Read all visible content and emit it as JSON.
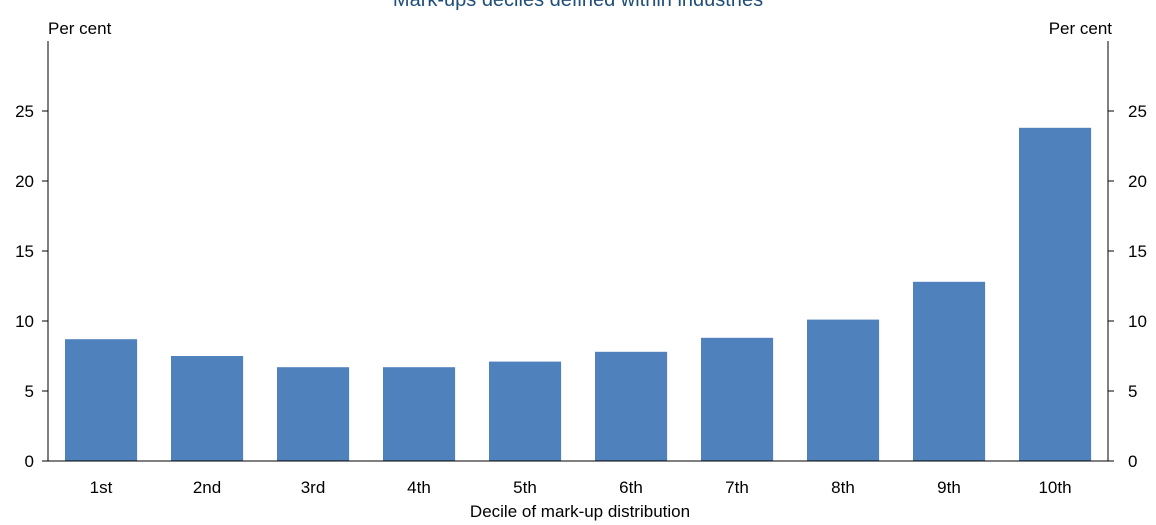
{
  "chart_data": {
    "type": "bar",
    "title": "Mark-ups deciles defined within industries",
    "unit_left": "Per cent",
    "unit_right": "Per cent",
    "xlabel": "Decile of mark-up distribution",
    "ylabel": "",
    "categories": [
      "1st",
      "2nd",
      "3rd",
      "4th",
      "5th",
      "6th",
      "7th",
      "8th",
      "9th",
      "10th"
    ],
    "values": [
      8.7,
      7.5,
      6.7,
      6.7,
      7.1,
      7.8,
      8.8,
      10.1,
      12.8,
      23.8
    ],
    "ylim": [
      0,
      30
    ],
    "yticks": [
      0,
      5,
      10,
      15,
      20,
      25
    ],
    "bar_color": "#4F81BD",
    "title_color": "#1F4E79",
    "grid": false,
    "legend": "none"
  }
}
